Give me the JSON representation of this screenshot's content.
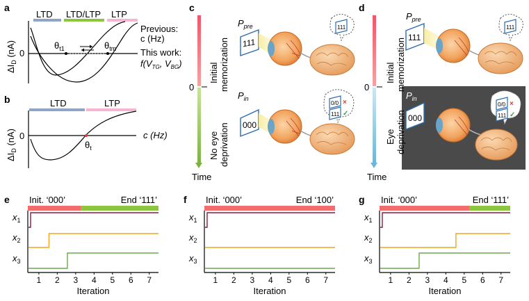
{
  "panel_labels": {
    "a": "a",
    "b": "b",
    "c": "c",
    "d": "d",
    "e": "e",
    "f": "f",
    "g": "g"
  },
  "panel_a": {
    "bands": [
      "LTD",
      "LTD/LTP",
      "LTP"
    ],
    "ylabel_main": "ΔI",
    "ylabel_sub": "D",
    "ylabel_unit": " (nA)",
    "zero": "0",
    "theta1_main": "θ",
    "theta1_sub": "t1",
    "thetam_main": "θ",
    "thetam_sub": "tm",
    "prev_line1": "Previous:",
    "prev_line2": "c (Hz)",
    "this_line": "This work:",
    "f_main": "f(V",
    "f_sub1": "TG",
    "f_mid": ", V",
    "f_sub2": "BG",
    "f_end": ")"
  },
  "panel_b": {
    "bands": [
      "LTD",
      "LTP"
    ],
    "ylabel_main": "ΔI",
    "ylabel_sub": "D",
    "ylabel_unit": " (nA)",
    "zero": "0",
    "xlabel": "c (Hz)",
    "theta_main": "θ",
    "theta_sub": "t"
  },
  "panel_c": {
    "zero": "0",
    "top_line1": "Initial",
    "top_line2": "memorization",
    "bot_line1": "No eye",
    "bot_line2": "deprivation",
    "time": "Time",
    "p_pre_main": "P",
    "p_pre_sub": "pre",
    "p_in_main": "P",
    "p_in_sub": "in",
    "pattern_111": "111",
    "pattern_000": "000",
    "bubble_top": "111",
    "bubble_a": "0/0",
    "bubble_b": "111",
    "wrong_mark": "×",
    "right_mark": "✓"
  },
  "panel_d": {
    "zero": "0",
    "top_line1": "Initial",
    "top_line2": "memorization",
    "bot_line1": "Eye",
    "bot_line2": "deprivation",
    "time": "Time",
    "p_pre_main": "P",
    "p_pre_sub": "pre",
    "p_in_main": "P",
    "p_in_sub": "in",
    "pattern_111": "111",
    "pattern_000": "000",
    "bubble_top": "111",
    "bubble_a": "0/0",
    "bubble_b": "111",
    "wrong_mark": "×",
    "right_mark": "✓",
    "dark_bg": "#4a4a4a"
  },
  "iteration_panels": [
    {
      "init": "Init. ‘000’",
      "end": "End ‘111’",
      "x_label": "Iteration",
      "ticks": [
        "1",
        "2",
        "3",
        "4",
        "5",
        "6",
        "7"
      ],
      "rows": [
        {
          "main": "x",
          "sub": "1"
        },
        {
          "main": "x",
          "sub": "2"
        },
        {
          "main": "x",
          "sub": "3"
        }
      ],
      "switch_iteration": {
        "x1": 0.55,
        "x2": 1.55,
        "x3": 2.55
      },
      "bar_split": 3.3
    },
    {
      "init": "Init. ‘000’",
      "end": "End ‘100’",
      "x_label": "Iteration",
      "ticks": [
        "1",
        "2",
        "3",
        "4",
        "5",
        "6",
        "7"
      ],
      "rows": [
        {
          "main": "x",
          "sub": "1"
        },
        {
          "main": "x",
          "sub": "2"
        },
        {
          "main": "x",
          "sub": "3"
        }
      ],
      "switch_iteration": {
        "x1": 0.55,
        "x2": null,
        "x3": null
      },
      "bar_split": 7.5
    },
    {
      "init": "Init. ‘000’",
      "end": "End ‘111’",
      "x_label": "Iteration",
      "ticks": [
        "1",
        "2",
        "3",
        "4",
        "5",
        "6",
        "7"
      ],
      "rows": [
        {
          "main": "x",
          "sub": "1"
        },
        {
          "main": "x",
          "sub": "2"
        },
        {
          "main": "x",
          "sub": "3"
        }
      ],
      "switch_iteration": {
        "x1": 0.55,
        "x2": 4.55,
        "x3": 2.55
      },
      "bar_split": 5.3
    }
  ],
  "colors": {
    "red": "#f26d6d",
    "green": "#8cc63f",
    "blue": "#8ea5c8",
    "pink": "#f6b6d2",
    "x1": "#8b1a3a",
    "x2": "#f2a51a",
    "x3": "#6aa84f"
  }
}
